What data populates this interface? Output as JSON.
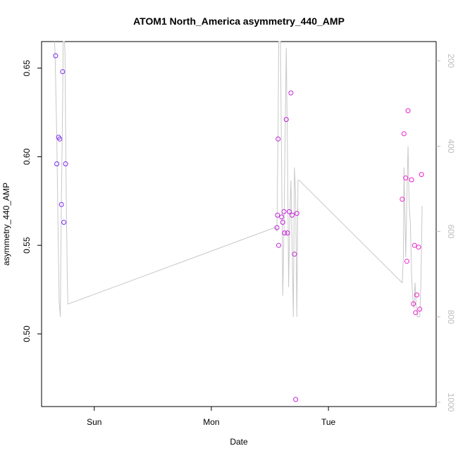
{
  "chart_data": {
    "type": "scatter",
    "title": "ATOM1 North_America asymmetry_440_AMP",
    "xlabel": "Date",
    "ylabel": "asymmetry_440_AMP",
    "x_ticks": [
      "Sun",
      "Mon",
      "Tue"
    ],
    "y_ticks": [
      "0.50",
      "0.55",
      "0.60",
      "0.65"
    ],
    "y2_ticks": [
      "200",
      "400",
      "600",
      "800",
      "1000"
    ],
    "ylim": [
      0.459,
      0.665
    ],
    "y2lim": [
      1010,
      155
    ],
    "x_unit": "days",
    "xlim": [
      -0.45,
      2.92
    ],
    "grid": false,
    "colors": {
      "points_early": "#7b2cf5",
      "points_late": "#f020c8",
      "line": "#c8c8c8"
    },
    "points": [
      {
        "x": -0.33,
        "y": 0.657
      },
      {
        "x": -0.32,
        "y": 0.596
      },
      {
        "x": -0.305,
        "y": 0.611
      },
      {
        "x": -0.295,
        "y": 0.61
      },
      {
        "x": -0.28,
        "y": 0.573
      },
      {
        "x": -0.27,
        "y": 0.648
      },
      {
        "x": -0.26,
        "y": 0.563
      },
      {
        "x": -0.245,
        "y": 0.596
      },
      {
        "x": 1.56,
        "y": 0.56
      },
      {
        "x": 1.565,
        "y": 0.567
      },
      {
        "x": 1.57,
        "y": 0.61
      },
      {
        "x": 1.575,
        "y": 0.55
      },
      {
        "x": 1.6,
        "y": 0.566
      },
      {
        "x": 1.61,
        "y": 0.563
      },
      {
        "x": 1.62,
        "y": 0.569
      },
      {
        "x": 1.625,
        "y": 0.557
      },
      {
        "x": 1.64,
        "y": 0.621
      },
      {
        "x": 1.65,
        "y": 0.557
      },
      {
        "x": 1.665,
        "y": 0.569
      },
      {
        "x": 1.68,
        "y": 0.636
      },
      {
        "x": 1.69,
        "y": 0.567
      },
      {
        "x": 1.71,
        "y": 0.545
      },
      {
        "x": 1.72,
        "y": 0.463
      },
      {
        "x": 1.73,
        "y": 0.568
      },
      {
        "x": 2.63,
        "y": 0.576
      },
      {
        "x": 2.645,
        "y": 0.613
      },
      {
        "x": 2.66,
        "y": 0.588
      },
      {
        "x": 2.67,
        "y": 0.541
      },
      {
        "x": 2.68,
        "y": 0.626
      },
      {
        "x": 2.71,
        "y": 0.587
      },
      {
        "x": 2.725,
        "y": 0.517
      },
      {
        "x": 2.735,
        "y": 0.55
      },
      {
        "x": 2.745,
        "y": 0.512
      },
      {
        "x": 2.755,
        "y": 0.522
      },
      {
        "x": 2.77,
        "y": 0.549
      },
      {
        "x": 2.78,
        "y": 0.514
      },
      {
        "x": 2.795,
        "y": 0.59
      }
    ],
    "line_series": {
      "axis": "right",
      "x": [
        -0.34,
        -0.335,
        -0.32,
        -0.31,
        -0.3,
        -0.29,
        -0.28,
        -0.27,
        -0.265,
        -0.255,
        -0.25,
        -0.24,
        -0.23,
        -0.225,
        1.55,
        1.56,
        1.57,
        1.575,
        1.59,
        1.6,
        1.61,
        1.62,
        1.63,
        1.64,
        1.65,
        1.66,
        1.67,
        1.68,
        1.69,
        1.7,
        1.71,
        1.72,
        1.73,
        1.74,
        1.75,
        2.63,
        2.64,
        2.645,
        2.65,
        2.66,
        2.67,
        2.68,
        2.69,
        2.7,
        2.71,
        2.72,
        2.73,
        2.74,
        2.75,
        2.76,
        2.77,
        2.78,
        2.79,
        2.8
      ],
      "y": [
        100,
        180,
        380,
        580,
        760,
        800,
        520,
        300,
        120,
        60,
        180,
        500,
        720,
        770,
        590,
        600,
        350,
        100,
        60,
        450,
        750,
        600,
        380,
        170,
        420,
        730,
        560,
        480,
        640,
        800,
        450,
        520,
        800,
        480,
        480,
        720,
        660,
        450,
        520,
        660,
        520,
        400,
        540,
        580,
        700,
        760,
        780,
        720,
        780,
        800,
        800,
        800,
        720,
        540
      ]
    }
  }
}
